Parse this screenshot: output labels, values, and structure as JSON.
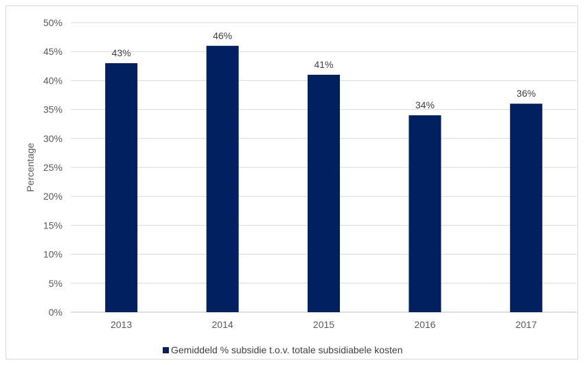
{
  "chart_data": {
    "type": "bar",
    "categories": [
      "2013",
      "2014",
      "2015",
      "2016",
      "2017"
    ],
    "values": [
      43,
      46,
      41,
      34,
      36
    ],
    "data_labels": [
      "43%",
      "46%",
      "41%",
      "34%",
      "36%"
    ],
    "title": "",
    "xlabel": "",
    "ylabel": "Percentage",
    "ylim": [
      0,
      50
    ],
    "yticks": [
      0,
      5,
      10,
      15,
      20,
      25,
      30,
      35,
      40,
      45,
      50
    ],
    "ytick_labels": [
      "0%",
      "5%",
      "10%",
      "15%",
      "20%",
      "25%",
      "30%",
      "35%",
      "40%",
      "45%",
      "50%"
    ],
    "grid": true,
    "legend_position": "bottom",
    "series": [
      {
        "name": "Gemiddeld % subsidie t.o.v. totale subsidiabele kosten",
        "color": "#002060"
      }
    ],
    "colors": {
      "bar": "#002060",
      "grid": "#d9d9d9",
      "axis": "#bfbfbf"
    }
  }
}
